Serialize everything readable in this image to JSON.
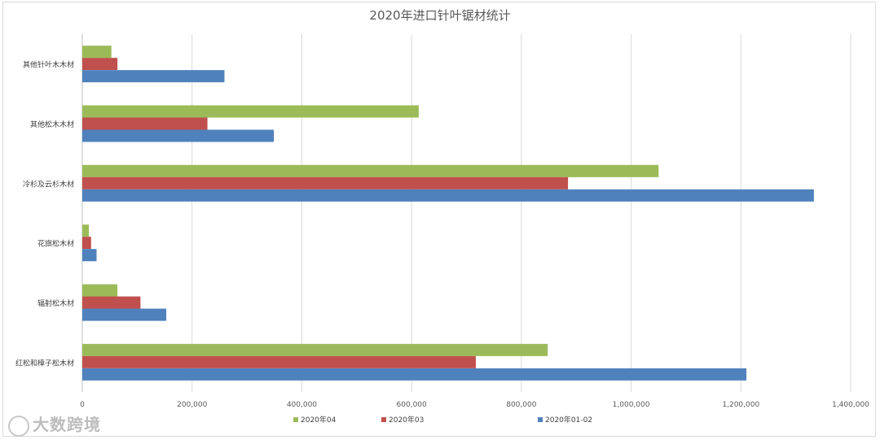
{
  "chart_data": {
    "type": "bar",
    "orientation": "horizontal",
    "title": "2020年进口针叶锯材统计",
    "categories": [
      "其他针叶木木材",
      "其他松木木材",
      "冷杉及云杉木材",
      "花旗松木材",
      "辐射松木材",
      "红松和樟子松木材"
    ],
    "series": [
      {
        "name": "2020年04",
        "color": "#9bbb59",
        "values": [
          53000,
          613000,
          1050000,
          12000,
          64000,
          848000
        ]
      },
      {
        "name": "2020年03",
        "color": "#c0504d",
        "values": [
          64000,
          228000,
          885000,
          16000,
          106000,
          717000
        ]
      },
      {
        "name": "2020年01-02",
        "color": "#4f81bd",
        "values": [
          259000,
          349000,
          1333000,
          26000,
          153000,
          1210000
        ]
      }
    ],
    "xlim": [
      0,
      1400000
    ],
    "xticks": [
      "0",
      "200,000",
      "400,000",
      "600,000",
      "800,000",
      "1,000,000",
      "1,200,000",
      "1,400,000"
    ],
    "grid": true,
    "legend": "bottom"
  },
  "watermark": "大数跨境"
}
